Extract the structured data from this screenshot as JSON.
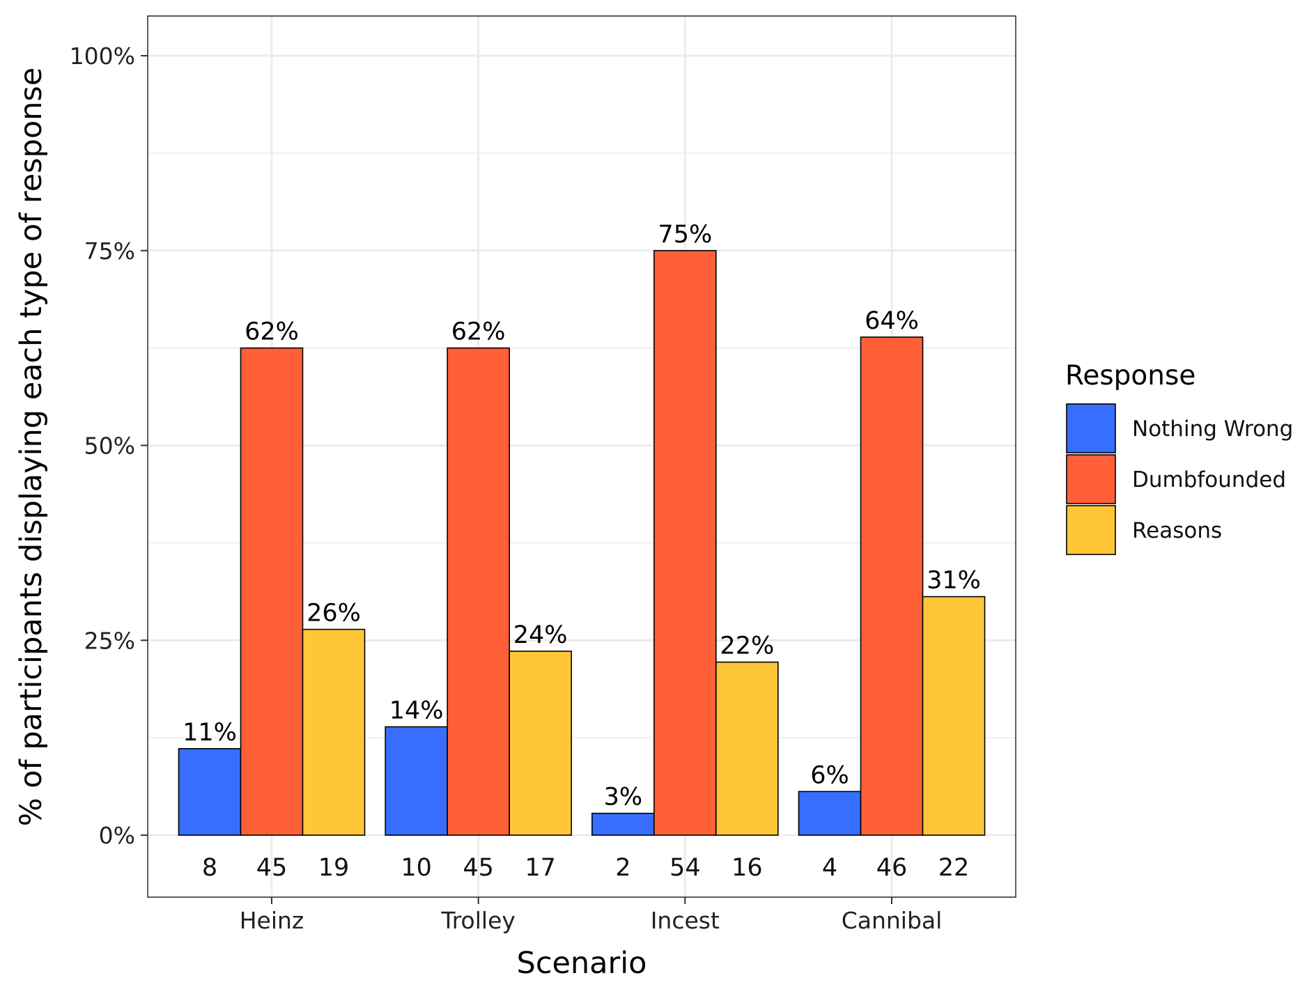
{
  "chart_data": {
    "type": "bar",
    "xlabel": "Scenario",
    "ylabel": "% of participants displaying each type of response",
    "ylim": [
      -0.08,
      1.05
    ],
    "yticks": [
      0,
      0.25,
      0.5,
      0.75,
      1.0
    ],
    "ytick_labels": [
      "0%",
      "25%",
      "50%",
      "75%",
      "100%"
    ],
    "grid": true,
    "legend_position": "right",
    "legend_title": "Response",
    "categories": [
      "Heinz",
      "Trolley",
      "Incest",
      "Cannibal"
    ],
    "series": [
      {
        "name": "Nothing Wrong",
        "color": "#376EFF",
        "values": [
          0.111,
          0.139,
          0.028,
          0.056
        ],
        "labels": [
          "11%",
          "14%",
          "3%",
          "6%"
        ],
        "counts": [
          "8",
          "10",
          "2",
          "4"
        ]
      },
      {
        "name": "Dumbfounded",
        "color": "#FF6038",
        "values": [
          0.625,
          0.625,
          0.75,
          0.639
        ],
        "labels": [
          "62%",
          "62%",
          "75%",
          "64%"
        ],
        "counts": [
          "45",
          "45",
          "54",
          "46"
        ]
      },
      {
        "name": "Reasons",
        "color": "#FFC638",
        "values": [
          0.264,
          0.236,
          0.222,
          0.306
        ],
        "labels": [
          "26%",
          "24%",
          "22%",
          "31%"
        ],
        "counts": [
          "19",
          "17",
          "16",
          "22"
        ]
      }
    ]
  }
}
